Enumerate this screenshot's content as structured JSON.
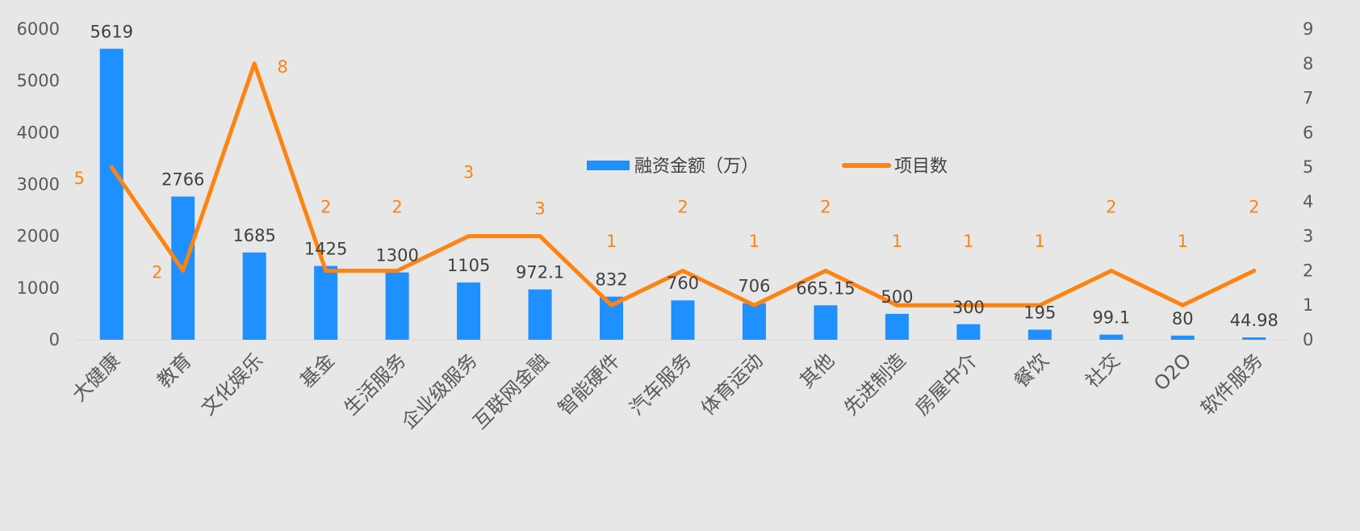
{
  "chart_data": {
    "type": "bar",
    "categories": [
      "大健康",
      "教育",
      "文化娱乐",
      "基金",
      "生活服务",
      "企业级服务",
      "互联网金融",
      "智能硬件",
      "汽车服务",
      "体育运动",
      "其他",
      "先进制造",
      "房屋中介",
      "餐饮",
      "社交",
      "O2O",
      "软件服务"
    ],
    "series": [
      {
        "name": "融资金额（万）",
        "type": "bar",
        "axis": "left",
        "color": "#1e90ff",
        "values": [
          5619,
          2766,
          1685,
          1425,
          1300,
          1105,
          972.1,
          832,
          760,
          706,
          665.15,
          500,
          300,
          195,
          99.1,
          80,
          44.98
        ],
        "labels": [
          "5619",
          "2766",
          "1685",
          "1425",
          "1300",
          "1105",
          "972.1",
          "832",
          "760",
          "706",
          "665.15",
          "500",
          "300",
          "195",
          "99.1",
          "80",
          "44.98"
        ]
      },
      {
        "name": "项目数",
        "type": "line",
        "axis": "right",
        "color": "#ff8310",
        "values": [
          5,
          2,
          8,
          2,
          2,
          3,
          3,
          1,
          2,
          1,
          2,
          1,
          1,
          1,
          2,
          1,
          2
        ],
        "labels": [
          "5",
          "2",
          "8",
          "2",
          "2",
          "3",
          "3",
          "1",
          "2",
          "1",
          "2",
          "1",
          "1",
          "1",
          "2",
          "1",
          "2"
        ]
      }
    ],
    "y_left": {
      "min": 0,
      "max": 6000,
      "ticks": [
        "0",
        "1000",
        "2000",
        "3000",
        "4000",
        "5000",
        "6000"
      ]
    },
    "y_right": {
      "min": 0,
      "max": 9,
      "ticks": [
        "0",
        "1",
        "2",
        "3",
        "4",
        "5",
        "6",
        "7",
        "8",
        "9"
      ]
    },
    "grid": false,
    "legend": "center",
    "background": "#e7e7e7"
  }
}
